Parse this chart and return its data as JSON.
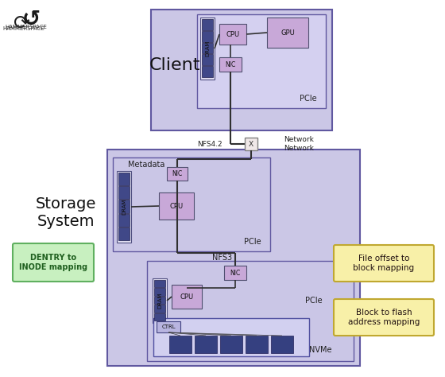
{
  "bg_color": "#ffffff",
  "title_client": "Client",
  "title_storage": "Storage\nSystem",
  "label_metadata": "Metadata",
  "label_nfs42": "NFS4.2",
  "label_nfs3": "NFS3",
  "label_network": "Network\nNetwork",
  "label_dentry": "DENTRY to\nINODE mapping",
  "label_file_offset": "File offset to\nblock mapping",
  "label_block_flash": "Block to flash\naddress mapping",
  "label_nvme": "NVMe",
  "label_pcie": "PCIe",
  "label_gpu": "GPU",
  "label_cpu": "CPU",
  "label_nic": "NIC",
  "label_dram": "DRAM",
  "label_ctrl": "CTRL",
  "color_client_outer": "#c4bedd",
  "color_client_inner": "#ccc8e8",
  "color_storage_outer": "#c4bedd",
  "color_storage_inner": "#d4d0ee",
  "color_meta_box": "#c8c4e8",
  "color_data_box": "#c8c4e8",
  "color_component_purple": "#c8a8d8",
  "color_dram_outer": "#e0ddf0",
  "color_dram_chip": "#404888",
  "color_nvme_chip": "#354080",
  "color_nvme_box": "#d0d4f0",
  "color_dentry_fill": "#c8f0c0",
  "color_dentry_edge": "#60b060",
  "color_mapping_fill": "#f8f0a8",
  "color_mapping_edge": "#c0a830",
  "color_x_fill": "#f0e8e8",
  "color_x_edge": "#808080",
  "line_color": "#303030",
  "text_dark": "#101010",
  "text_gray": "#404040"
}
